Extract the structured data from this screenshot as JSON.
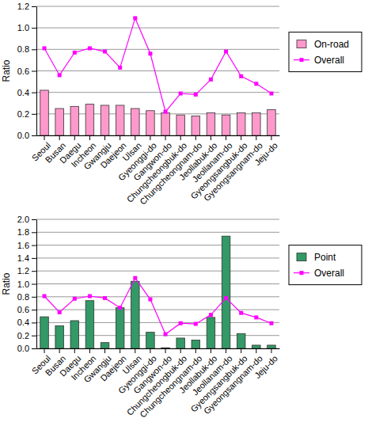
{
  "chart_data": [
    {
      "type": "bar",
      "y_label": "Ratio",
      "categories": [
        "Seoul",
        "Busan",
        "Daegu",
        "Incheon",
        "Gwangju",
        "Daejeon",
        "Ulsan",
        "Gyeonggi-do",
        "Gangwon-do",
        "Chungcheongbuk-do",
        "Chungcheongnam-do",
        "Jeollabuk-do",
        "Jeollanam-do",
        "Gyeongsangbuk-do",
        "Gyeongsangnam-do",
        "Jeju-do"
      ],
      "series": [
        {
          "name": "On-road",
          "type": "bar",
          "color": "#ff99cc",
          "values": [
            0.42,
            0.25,
            0.27,
            0.29,
            0.28,
            0.28,
            0.25,
            0.23,
            0.21,
            0.19,
            0.18,
            0.21,
            0.19,
            0.21,
            0.21,
            0.24
          ]
        },
        {
          "name": "Overall",
          "type": "line",
          "color": "#ff00ff",
          "marker": "square",
          "values": [
            0.81,
            0.56,
            0.77,
            0.81,
            0.78,
            0.63,
            1.09,
            0.76,
            0.22,
            0.39,
            0.38,
            0.52,
            0.78,
            0.55,
            0.48,
            0.39
          ]
        }
      ],
      "ylim": [
        0,
        1.2
      ],
      "yticks": [
        {
          "value": 0,
          "label": "0.0"
        },
        0.2,
        0.4,
        0.6,
        0.8,
        {
          "value": 1,
          "label": "1.0"
        },
        1.2
      ],
      "grid": true,
      "legend": "right"
    },
    {
      "type": "bar",
      "y_label": "Ratio",
      "categories": [
        "Seoul",
        "Busan",
        "Daegu",
        "Incheon",
        "Gwangju",
        "Daejeon",
        "Ulsan",
        "Gyeonggi-do",
        "Gangwon-do",
        "Chungcheongbuk-do",
        "Chungcheongnam-do",
        "Jeollabuk-do",
        "Jeollanam-do",
        "Gyeongsangbuk-do",
        "Gyeongsangnam-do",
        "Jeju-do"
      ],
      "series": [
        {
          "name": "Point",
          "type": "bar",
          "color": "#339966",
          "values": [
            0.49,
            0.35,
            0.43,
            0.74,
            0.09,
            0.63,
            1.04,
            0.25,
            0.01,
            0.16,
            0.13,
            0.48,
            1.74,
            0.23,
            0.05,
            0.05
          ]
        },
        {
          "name": "Overall",
          "type": "line",
          "color": "#ff00ff",
          "marker": "square",
          "values": [
            0.81,
            0.56,
            0.77,
            0.81,
            0.78,
            0.63,
            1.09,
            0.76,
            0.22,
            0.39,
            0.38,
            0.52,
            0.78,
            0.55,
            0.48,
            0.39
          ]
        }
      ],
      "ylim": [
        0,
        2
      ],
      "yticks": [
        {
          "value": 0,
          "label": "0.0"
        },
        0.2,
        0.4,
        0.6,
        0.8,
        {
          "value": 1,
          "label": "1.0"
        },
        1.2,
        1.4,
        1.6,
        1.8,
        {
          "value": 2,
          "label": "2.0"
        }
      ],
      "grid": true,
      "legend": "right"
    }
  ]
}
